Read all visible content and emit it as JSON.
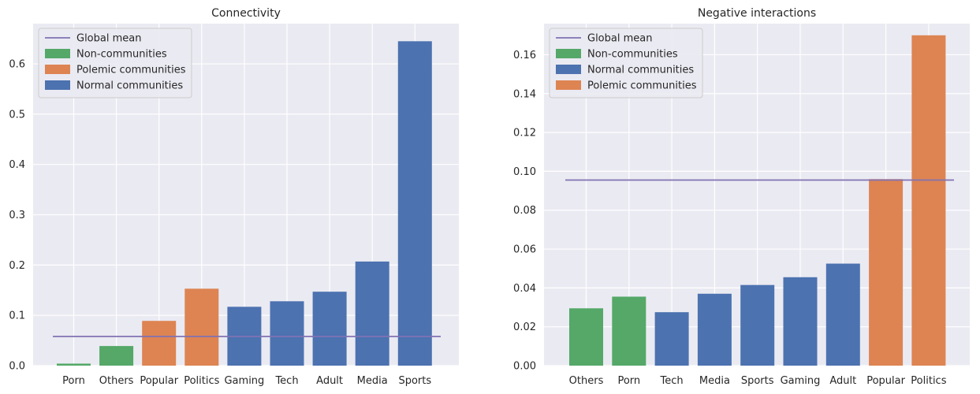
{
  "chart_data": [
    {
      "type": "bar",
      "title": "Connectivity",
      "xlabel": "",
      "ylabel": "",
      "ylim": [
        0,
        0.68
      ],
      "yticks": [
        0.0,
        0.1,
        0.2,
        0.3,
        0.4,
        0.5,
        0.6
      ],
      "ytick_labels": [
        "0.0",
        "0.1",
        "0.2",
        "0.3",
        "0.4",
        "0.5",
        "0.6"
      ],
      "grid": true,
      "legend_position": "top-left",
      "global_mean": 0.058,
      "categories": [
        "Porn",
        "Others",
        "Popular",
        "Politics",
        "Gaming",
        "Tech",
        "Adult",
        "Media",
        "Sports"
      ],
      "values": [
        0.004,
        0.039,
        0.089,
        0.153,
        0.117,
        0.128,
        0.147,
        0.207,
        0.645
      ],
      "groups": [
        "Non-communities",
        "Non-communities",
        "Polemic communities",
        "Polemic communities",
        "Normal communities",
        "Normal communities",
        "Normal communities",
        "Normal communities",
        "Normal communities"
      ],
      "legend": [
        {
          "label": "Global mean",
          "kind": "line",
          "color": "#8172b3"
        },
        {
          "label": "Non-communities",
          "kind": "bar",
          "color": "#55a868"
        },
        {
          "label": "Polemic communities",
          "kind": "bar",
          "color": "#dd8452"
        },
        {
          "label": "Normal communities",
          "kind": "bar",
          "color": "#4c72b0"
        }
      ]
    },
    {
      "type": "bar",
      "title": "Negative interactions",
      "xlabel": "",
      "ylabel": "",
      "ylim": [
        0,
        0.176
      ],
      "yticks": [
        0.0,
        0.02,
        0.04,
        0.06,
        0.08,
        0.1,
        0.12,
        0.14,
        0.16
      ],
      "ytick_labels": [
        "0.00",
        "0.02",
        "0.04",
        "0.06",
        "0.08",
        "0.10",
        "0.12",
        "0.14",
        "0.16"
      ],
      "grid": true,
      "legend_position": "top-left",
      "global_mean": 0.0955,
      "categories": [
        "Others",
        "Porn",
        "Tech",
        "Media",
        "Sports",
        "Gaming",
        "Adult",
        "Popular",
        "Politics"
      ],
      "values": [
        0.0295,
        0.0355,
        0.0275,
        0.037,
        0.0415,
        0.0455,
        0.0525,
        0.096,
        0.17
      ],
      "groups": [
        "Non-communities",
        "Non-communities",
        "Normal communities",
        "Normal communities",
        "Normal communities",
        "Normal communities",
        "Normal communities",
        "Polemic communities",
        "Polemic communities"
      ],
      "legend": [
        {
          "label": "Global mean",
          "kind": "line",
          "color": "#8172b3"
        },
        {
          "label": "Non-communities",
          "kind": "bar",
          "color": "#55a868"
        },
        {
          "label": "Normal communities",
          "kind": "bar",
          "color": "#4c72b0"
        },
        {
          "label": "Polemic communities",
          "kind": "bar",
          "color": "#dd8452"
        }
      ]
    }
  ],
  "colors": {
    "Non-communities": "#55a868",
    "Polemic communities": "#dd8452",
    "Normal communities": "#4c72b0",
    "Global mean": "#8172b3",
    "plot_background": "#eaeaf2",
    "grid": "#ffffff"
  }
}
